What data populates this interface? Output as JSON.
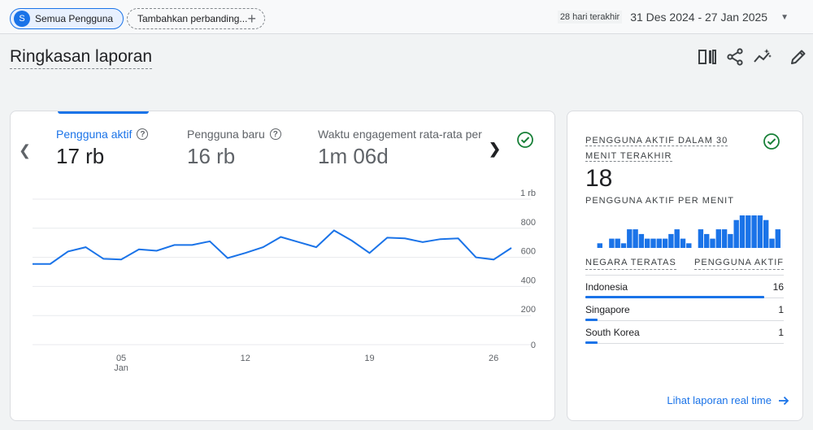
{
  "topbar": {
    "segment_initial": "S",
    "segment_label": "Semua Pengguna",
    "add_comparison_label": "Tambahkan perbanding...",
    "date_relative": "28 hari terakhir",
    "date_range": "31 Des 2024 - 27 Jan 2025"
  },
  "page": {
    "title": "Ringkasan laporan"
  },
  "toolbar": {
    "icons": [
      "compare-icon",
      "share-icon",
      "insights-icon",
      "edit-icon"
    ]
  },
  "metrics": [
    {
      "label": "Pengguna aktif",
      "value": "17 rb",
      "active": true
    },
    {
      "label": "Pengguna baru",
      "value": "16 rb",
      "active": false
    },
    {
      "label": "Waktu engagement rata-rata per",
      "value": "1m 06d",
      "active": false
    }
  ],
  "chart_data": {
    "type": "line",
    "series": [
      {
        "values": [
          555,
          555,
          640,
          670,
          590,
          585,
          655,
          645,
          685,
          685,
          710,
          595,
          630,
          670,
          740,
          705,
          670,
          785,
          715,
          630,
          735,
          730,
          705,
          725,
          730,
          600,
          585,
          665
        ]
      }
    ],
    "ylim": [
      0,
      1000
    ],
    "y_ticks": [
      "0",
      "200",
      "400",
      "600",
      "800",
      "1 rb"
    ],
    "x_ticks": [
      {
        "label": "05",
        "sub": "Jan",
        "index": 5
      },
      {
        "label": "12",
        "index": 12
      },
      {
        "label": "19",
        "index": 19
      },
      {
        "label": "26",
        "index": 26
      }
    ],
    "color": "#1a73e8",
    "grid": true
  },
  "realtime": {
    "title": "PENGGUNA AKTIF DALAM 30 MENIT TERAKHIR",
    "count": "18",
    "subtitle": "PENGGUNA AKTIF PER MENIT",
    "per_minute": [
      0,
      0,
      1,
      0,
      2,
      2,
      1,
      4,
      4,
      3,
      2,
      2,
      2,
      2,
      3,
      4,
      2,
      1,
      0,
      4,
      3,
      2,
      4,
      4,
      3,
      6,
      7,
      7,
      7,
      7,
      6,
      2,
      4
    ],
    "col_country": "NEGARA TERATAS",
    "col_users": "PENGGUNA AKTIF",
    "rows": [
      {
        "country": "Indonesia",
        "users": "16",
        "share": 0.9
      },
      {
        "country": "Singapore",
        "users": "1",
        "share": 0.06
      },
      {
        "country": "South Korea",
        "users": "1",
        "share": 0.06
      }
    ],
    "link_label": "Lihat laporan real time"
  }
}
